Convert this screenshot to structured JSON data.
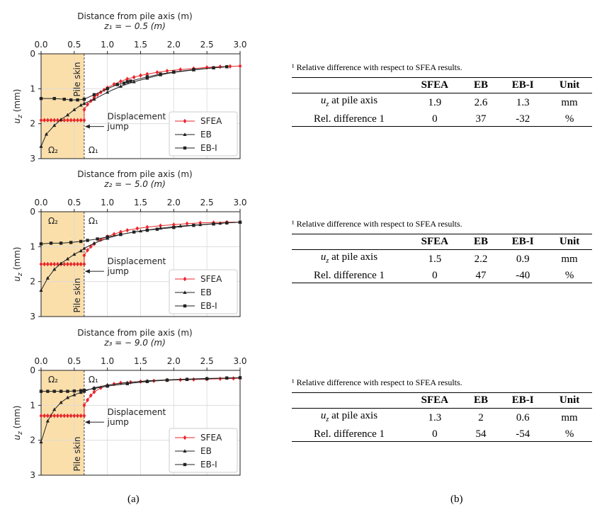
{
  "chart_data": [
    {
      "type": "line",
      "top_label": "Distance from pile axis (m)",
      "depth_label": "z₁ = − 0.5 (m)",
      "ylabel": "u_z (mm)",
      "xlim": [
        0,
        3.0
      ],
      "ylim": [
        3,
        0
      ],
      "x_ticks": [
        "0.0",
        "0.5",
        "1.0",
        "1.5",
        "2.0",
        "2.5",
        "3.0"
      ],
      "y_ticks": [
        "0",
        "1",
        "2",
        "3"
      ],
      "pile_radius": 0.65,
      "pile_skin_label": "Pile skin",
      "omega2_label": "Ω₂",
      "omega1_label": "Ω₁",
      "annotation": [
        "Displacement",
        "jump"
      ],
      "legend_placement": "lower-right",
      "series": [
        {
          "name": "SFEA",
          "color": "#e8262b",
          "marker": "diamond",
          "x": [
            0,
            0.05,
            0.1,
            0.15,
            0.2,
            0.25,
            0.3,
            0.35,
            0.4,
            0.45,
            0.5,
            0.55,
            0.6,
            0.65,
            0.65,
            0.7,
            0.75,
            0.8,
            0.85,
            0.9,
            0.95,
            1.0,
            1.1,
            1.2,
            1.3,
            1.4,
            1.5,
            1.6,
            1.75,
            1.9,
            2.1,
            2.3,
            2.5,
            2.7,
            2.85,
            3.0
          ],
          "y": [
            1.9,
            1.9,
            1.9,
            1.9,
            1.9,
            1.9,
            1.9,
            1.9,
            1.9,
            1.9,
            1.9,
            1.9,
            1.9,
            1.9,
            1.6,
            1.45,
            1.35,
            1.25,
            1.17,
            1.1,
            1.03,
            0.97,
            0.87,
            0.79,
            0.72,
            0.67,
            0.62,
            0.58,
            0.53,
            0.49,
            0.45,
            0.42,
            0.39,
            0.37,
            0.36,
            0.35
          ]
        },
        {
          "name": "EB",
          "color": "#222222",
          "marker": "triangle",
          "x": [
            0,
            0.08,
            0.2,
            0.3,
            0.4,
            0.5,
            0.6,
            0.65,
            0.8,
            1.0,
            1.2,
            1.4,
            1.6,
            1.8,
            2.0,
            2.3,
            2.6,
            2.8
          ],
          "y": [
            2.65,
            2.3,
            2.05,
            1.88,
            1.75,
            1.6,
            1.47,
            1.42,
            1.3,
            1.1,
            0.93,
            0.8,
            0.7,
            0.6,
            0.53,
            0.46,
            0.4,
            0.37
          ]
        },
        {
          "name": "EB-I",
          "color": "#222222",
          "marker": "square",
          "x": [
            0,
            0.2,
            0.35,
            0.45,
            0.55,
            0.65,
            0.8,
            1.0,
            1.15,
            1.25,
            1.3,
            1.35,
            1.6,
            1.8,
            2.0,
            2.3,
            2.6,
            2.8
          ],
          "y": [
            1.28,
            1.28,
            1.3,
            1.32,
            1.32,
            1.3,
            1.17,
            1.0,
            0.88,
            0.84,
            0.8,
            0.78,
            0.66,
            0.58,
            0.52,
            0.45,
            0.4,
            0.37
          ]
        }
      ]
    },
    {
      "type": "line",
      "top_label": "Distance from pile axis (m)",
      "depth_label": "z₂ = − 5.0 (m)",
      "ylabel": "u_z (mm)",
      "xlim": [
        0,
        3.0
      ],
      "ylim": [
        3,
        0
      ],
      "x_ticks": [
        "0.0",
        "0.5",
        "1.0",
        "1.5",
        "2.0",
        "2.5",
        "3.0"
      ],
      "y_ticks": [
        "0",
        "1",
        "2",
        "3"
      ],
      "pile_radius": 0.65,
      "pile_skin_label": "Pile skin",
      "omega2_label": "Ω₂",
      "omega1_label": "Ω₁",
      "annotation": [
        "Displacement",
        "jump"
      ],
      "legend_placement": "lower-right",
      "series": [
        {
          "name": "SFEA",
          "color": "#e8262b",
          "marker": "diamond",
          "x": [
            0,
            0.05,
            0.1,
            0.15,
            0.2,
            0.25,
            0.3,
            0.35,
            0.4,
            0.45,
            0.5,
            0.55,
            0.6,
            0.65,
            0.65,
            0.7,
            0.75,
            0.8,
            0.9,
            1.0,
            1.1,
            1.2,
            1.3,
            1.45,
            1.6,
            1.8,
            2.0,
            2.2,
            2.4,
            2.6,
            2.8,
            3.0
          ],
          "y": [
            1.5,
            1.5,
            1.5,
            1.5,
            1.5,
            1.5,
            1.5,
            1.5,
            1.5,
            1.5,
            1.5,
            1.5,
            1.5,
            1.5,
            1.25,
            1.1,
            1.0,
            0.92,
            0.8,
            0.71,
            0.64,
            0.58,
            0.53,
            0.48,
            0.44,
            0.4,
            0.37,
            0.34,
            0.32,
            0.31,
            0.3,
            0.3
          ]
        },
        {
          "name": "EB",
          "color": "#222222",
          "marker": "triangle",
          "x": [
            0,
            0.1,
            0.2,
            0.3,
            0.4,
            0.5,
            0.6,
            0.65,
            0.8,
            1.0,
            1.2,
            1.5,
            1.8,
            2.1,
            2.4,
            2.7,
            3.0
          ],
          "y": [
            2.25,
            1.9,
            1.65,
            1.48,
            1.35,
            1.22,
            1.12,
            1.05,
            0.9,
            0.76,
            0.65,
            0.55,
            0.47,
            0.41,
            0.37,
            0.33,
            0.3
          ]
        },
        {
          "name": "EB-I",
          "color": "#222222",
          "marker": "square",
          "x": [
            0,
            0.15,
            0.3,
            0.45,
            0.6,
            0.7,
            0.85,
            1.0,
            1.2,
            1.4,
            1.6,
            1.75,
            2.0,
            2.3,
            2.6,
            2.8,
            3.0
          ],
          "y": [
            0.92,
            0.9,
            0.9,
            0.88,
            0.85,
            0.82,
            0.78,
            0.72,
            0.65,
            0.58,
            0.53,
            0.5,
            0.45,
            0.39,
            0.35,
            0.32,
            0.3
          ]
        }
      ]
    },
    {
      "type": "line",
      "top_label": "Distance from pile axis (m)",
      "depth_label": "z₃ = − 9.0 (m)",
      "ylabel": "u_z (mm)",
      "xlim": [
        0,
        3.0
      ],
      "ylim": [
        3,
        0
      ],
      "x_ticks": [
        "0.0",
        "0.5",
        "1.0",
        "1.5",
        "2.0",
        "2.5",
        "3.0"
      ],
      "y_ticks": [
        "0",
        "1",
        "2",
        "3"
      ],
      "pile_radius": 0.65,
      "pile_skin_label": "Pile skin",
      "omega2_label": "Ω₂",
      "omega1_label": "Ω₁",
      "annotation": [
        "Displacement",
        "jump"
      ],
      "legend_placement": "lower-right",
      "series": [
        {
          "name": "SFEA",
          "color": "#e8262b",
          "marker": "diamond",
          "x": [
            0,
            0.05,
            0.1,
            0.15,
            0.2,
            0.25,
            0.3,
            0.35,
            0.4,
            0.45,
            0.5,
            0.55,
            0.6,
            0.65,
            0.65,
            0.7,
            0.75,
            0.8,
            0.9,
            1.0,
            1.1,
            1.2,
            1.35,
            1.5,
            1.7,
            1.9,
            2.1,
            2.3,
            2.5,
            2.7,
            2.9,
            3.0
          ],
          "y": [
            1.3,
            1.3,
            1.3,
            1.3,
            1.3,
            1.3,
            1.3,
            1.3,
            1.3,
            1.3,
            1.3,
            1.3,
            1.3,
            1.3,
            1.0,
            0.85,
            0.72,
            0.62,
            0.5,
            0.43,
            0.39,
            0.36,
            0.34,
            0.32,
            0.3,
            0.28,
            0.27,
            0.26,
            0.25,
            0.24,
            0.23,
            0.22
          ]
        },
        {
          "name": "EB",
          "color": "#222222",
          "marker": "triangle",
          "x": [
            0,
            0.1,
            0.2,
            0.3,
            0.4,
            0.5,
            0.6,
            0.65,
            0.8,
            1.0,
            1.3,
            1.6,
            1.9,
            2.2,
            2.5,
            2.8,
            3.0
          ],
          "y": [
            2.05,
            1.45,
            1.12,
            0.92,
            0.78,
            0.7,
            0.63,
            0.6,
            0.5,
            0.42,
            0.35,
            0.3,
            0.27,
            0.25,
            0.23,
            0.22,
            0.21
          ]
        },
        {
          "name": "EB-I",
          "color": "#222222",
          "marker": "square",
          "x": [
            0,
            0.1,
            0.2,
            0.3,
            0.4,
            0.5,
            0.6,
            0.65,
            0.8,
            1.0,
            1.3,
            1.6,
            1.9,
            2.2,
            2.5,
            2.8,
            3.0
          ],
          "y": [
            0.6,
            0.6,
            0.6,
            0.6,
            0.6,
            0.59,
            0.58,
            0.57,
            0.52,
            0.45,
            0.38,
            0.32,
            0.28,
            0.26,
            0.24,
            0.22,
            0.21
          ]
        }
      ]
    }
  ],
  "tables": [
    {
      "note": "¹ Relative difference with respect to SFEA results.",
      "headers": [
        "",
        "SFEA",
        "EB",
        "EB-I",
        "Unit"
      ],
      "row1_label": "u_z at pile axis",
      "row1": [
        "1.9",
        "2.6",
        "1.3",
        "mm"
      ],
      "row2_label": "Rel. difference 1",
      "row2": [
        "0",
        "37",
        "-32",
        "%"
      ]
    },
    {
      "note": "¹ Relative difference with respect to SFEA results.",
      "headers": [
        "",
        "SFEA",
        "EB",
        "EB-I",
        "Unit"
      ],
      "row1_label": "u_z at pile axis",
      "row1": [
        "1.5",
        "2.2",
        "0.9",
        "mm"
      ],
      "row2_label": "Rel. difference 1",
      "row2": [
        "0",
        "47",
        "-40",
        "%"
      ]
    },
    {
      "note": "¹ Relative difference with respect to SFEA results.",
      "headers": [
        "",
        "SFEA",
        "EB",
        "EB-I",
        "Unit"
      ],
      "row1_label": "u_z at pile axis",
      "row1": [
        "1.3",
        "2",
        "0.6",
        "mm"
      ],
      "row2_label": "Rel. difference 1",
      "row2": [
        "0",
        "54",
        "-54",
        "%"
      ]
    }
  ],
  "panel_labels": {
    "a": "(a)",
    "b": "(b)"
  },
  "colors": {
    "pile_region": "#fbdfab",
    "sfea": "#e8262b",
    "eb": "#222222"
  }
}
